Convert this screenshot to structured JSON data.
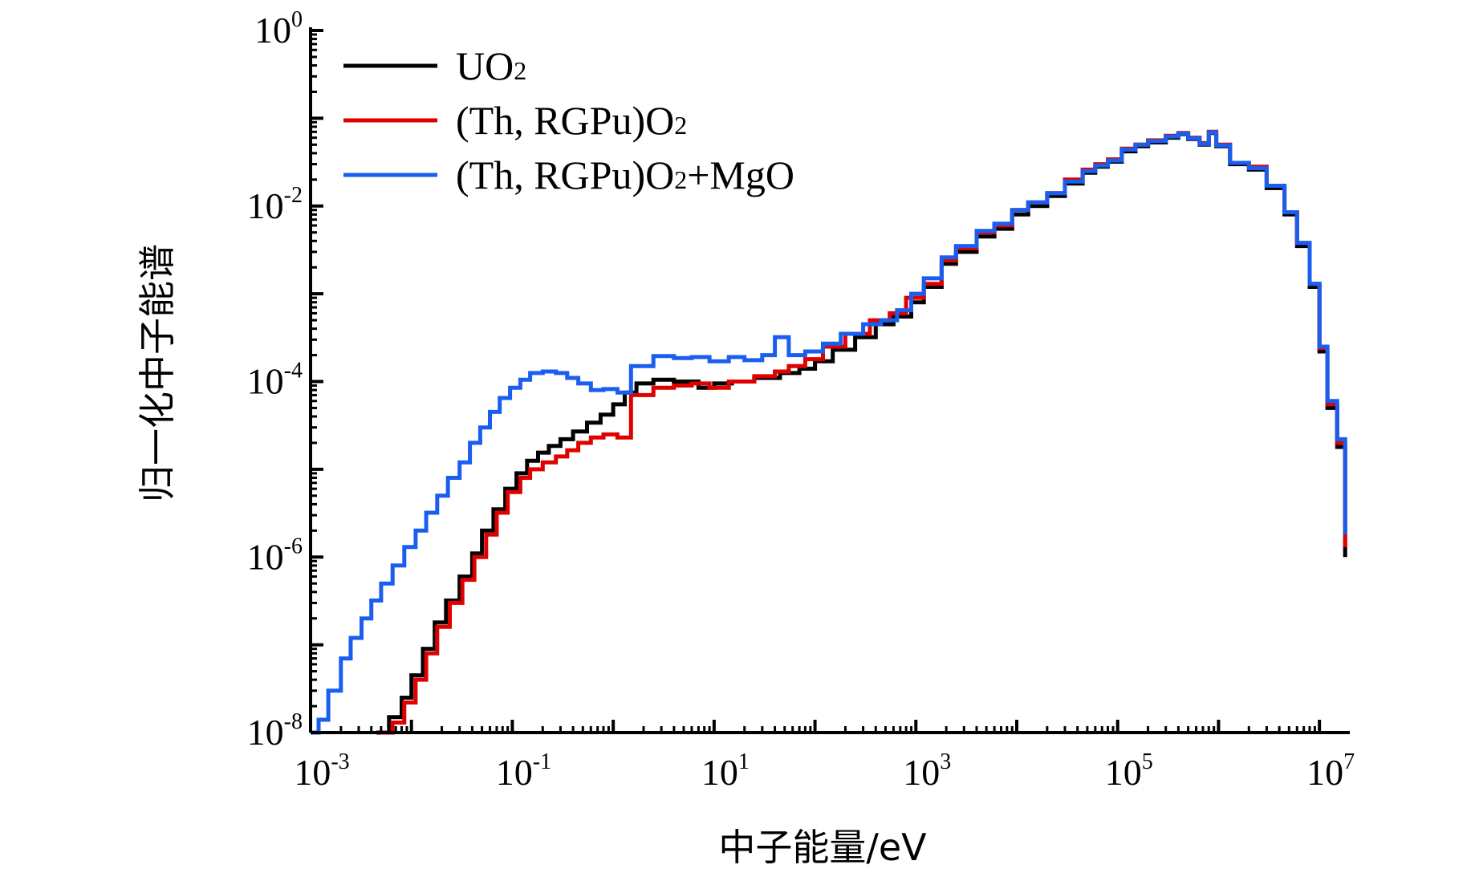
{
  "chart_data": {
    "type": "line",
    "xlabel": "中子能量/eV",
    "ylabel": "归一化中子能谱",
    "x_scale": "log",
    "y_scale": "log",
    "xlim": [
      0.001,
      20000000
    ],
    "ylim": [
      1e-08,
      1
    ],
    "x_ticks": [
      {
        "value": 0.001,
        "base": "10",
        "exp": "-3"
      },
      {
        "value": 0.1,
        "base": "10",
        "exp": "-1"
      },
      {
        "value": 10,
        "base": "10",
        "exp": "1"
      },
      {
        "value": 1000,
        "base": "10",
        "exp": "3"
      },
      {
        "value": 100000,
        "base": "10",
        "exp": "5"
      },
      {
        "value": 10000000,
        "base": "10",
        "exp": "7"
      }
    ],
    "y_ticks": [
      {
        "value": 1e-08,
        "base": "10",
        "exp": "-8"
      },
      {
        "value": 1e-06,
        "base": "10",
        "exp": "-6"
      },
      {
        "value": 0.0001,
        "base": "10",
        "exp": "-4"
      },
      {
        "value": 0.01,
        "base": "10",
        "exp": "-2"
      },
      {
        "value": 1,
        "base": "10",
        "exp": "0"
      }
    ],
    "grid": false,
    "legend_position": "top-left",
    "series": [
      {
        "name": "UO2",
        "legend_main": "UO",
        "legend_sub": "2",
        "legend_tail": "",
        "color": "#000000",
        "points": [
          [
            0.0045,
            1e-08
          ],
          [
            0.006,
            1.5e-08
          ],
          [
            0.008,
            2.5e-08
          ],
          [
            0.01,
            4.5e-08
          ],
          [
            0.013,
            9e-08
          ],
          [
            0.017,
            1.8e-07
          ],
          [
            0.022,
            3.2e-07
          ],
          [
            0.03,
            6e-07
          ],
          [
            0.04,
            1.1e-06
          ],
          [
            0.05,
            2e-06
          ],
          [
            0.065,
            3.5e-06
          ],
          [
            0.085,
            6e-06
          ],
          [
            0.11,
            9e-06
          ],
          [
            0.14,
            1.25e-05
          ],
          [
            0.18,
            1.55e-05
          ],
          [
            0.23,
            1.85e-05
          ],
          [
            0.3,
            2.2e-05
          ],
          [
            0.4,
            2.7e-05
          ],
          [
            0.55,
            3.4e-05
          ],
          [
            0.75,
            4.2e-05
          ],
          [
            1,
            5.5e-05
          ],
          [
            1.3,
            7.5e-05
          ],
          [
            1.7,
            9.5e-05
          ],
          [
            2.5,
            0.000105
          ],
          [
            4,
            0.0001
          ],
          [
            7,
            8.5e-05
          ],
          [
            10,
            9.5e-05
          ],
          [
            15,
            0.0001
          ],
          [
            25,
            0.00011
          ],
          [
            45,
            0.000125
          ],
          [
            70,
            0.00014
          ],
          [
            100,
            0.00017
          ],
          [
            150,
            0.00023
          ],
          [
            250,
            0.00032
          ],
          [
            400,
            0.00045
          ],
          [
            600,
            0.00055
          ],
          [
            900,
            0.0008
          ],
          [
            1200,
            0.0012
          ],
          [
            1800,
            0.0022
          ],
          [
            2500,
            0.003
          ],
          [
            4000,
            0.0045
          ],
          [
            6000,
            0.0055
          ],
          [
            9000,
            0.008
          ],
          [
            13000,
            0.01
          ],
          [
            20000,
            0.013
          ],
          [
            30000,
            0.018
          ],
          [
            45000,
            0.024
          ],
          [
            60000,
            0.028
          ],
          [
            80000,
            0.032
          ],
          [
            110000,
            0.042
          ],
          [
            150000,
            0.048
          ],
          [
            200000,
            0.053
          ],
          [
            300000,
            0.06
          ],
          [
            400000,
            0.066
          ],
          [
            500000,
            0.058
          ],
          [
            650000,
            0.05
          ],
          [
            800000,
            0.068
          ],
          [
            950000,
            0.048
          ],
          [
            1300000,
            0.03
          ],
          [
            2000000,
            0.026
          ],
          [
            3000000,
            0.016
          ],
          [
            4500000,
            0.008
          ],
          [
            6000000,
            0.0035
          ],
          [
            8000000,
            0.0012
          ],
          [
            10000000,
            0.00022
          ],
          [
            12000000,
            5e-05
          ],
          [
            15000000,
            1.8e-05
          ],
          [
            18000000,
            1e-06
          ]
        ]
      },
      {
        "name": "(Th, RGPu)O2",
        "legend_main": "(Th, RGPu)O",
        "legend_sub": "2",
        "legend_tail": "",
        "color": "#e00000",
        "points": [
          [
            0.005,
            1e-08
          ],
          [
            0.0065,
            1.3e-08
          ],
          [
            0.0085,
            2.2e-08
          ],
          [
            0.011,
            4e-08
          ],
          [
            0.014,
            8e-08
          ],
          [
            0.018,
            1.6e-07
          ],
          [
            0.024,
            3e-07
          ],
          [
            0.032,
            5.5e-07
          ],
          [
            0.042,
            1e-06
          ],
          [
            0.055,
            1.8e-06
          ],
          [
            0.07,
            3.2e-06
          ],
          [
            0.09,
            5.5e-06
          ],
          [
            0.12,
            8e-06
          ],
          [
            0.15,
            1e-05
          ],
          [
            0.2,
            1.2e-05
          ],
          [
            0.27,
            1.4e-05
          ],
          [
            0.35,
            1.65e-05
          ],
          [
            0.45,
            2e-05
          ],
          [
            0.6,
            2.3e-05
          ],
          [
            0.8,
            2.5e-05
          ],
          [
            1.1,
            2.3e-05
          ],
          [
            1.5,
            7e-05
          ],
          [
            2.5,
            8.5e-05
          ],
          [
            4,
            9e-05
          ],
          [
            6,
            9.5e-05
          ],
          [
            9,
            8.5e-05
          ],
          [
            14,
            0.0001
          ],
          [
            25,
            0.000115
          ],
          [
            40,
            0.00013
          ],
          [
            55,
            0.00015
          ],
          [
            80,
            0.00018
          ],
          [
            120,
            0.00025
          ],
          [
            200,
            0.00035
          ],
          [
            350,
            0.0005
          ],
          [
            550,
            0.0006
          ],
          [
            800,
            0.0009
          ],
          [
            1200,
            0.0013
          ],
          [
            1800,
            0.0024
          ],
          [
            2500,
            0.0033
          ],
          [
            4000,
            0.005
          ],
          [
            6000,
            0.006
          ],
          [
            9000,
            0.009
          ],
          [
            13000,
            0.011
          ],
          [
            20000,
            0.014
          ],
          [
            30000,
            0.02
          ],
          [
            45000,
            0.026
          ],
          [
            60000,
            0.03
          ],
          [
            80000,
            0.034
          ],
          [
            110000,
            0.045
          ],
          [
            150000,
            0.05
          ],
          [
            200000,
            0.056
          ],
          [
            300000,
            0.063
          ],
          [
            400000,
            0.068
          ],
          [
            500000,
            0.06
          ],
          [
            650000,
            0.052
          ],
          [
            800000,
            0.07
          ],
          [
            950000,
            0.05
          ],
          [
            1300000,
            0.031
          ],
          [
            2000000,
            0.028
          ],
          [
            3000000,
            0.017
          ],
          [
            4500000,
            0.0085
          ],
          [
            6000000,
            0.0038
          ],
          [
            8000000,
            0.0013
          ],
          [
            10000000,
            0.00024
          ],
          [
            12000000,
            5.5e-05
          ],
          [
            15000000,
            2e-05
          ],
          [
            18000000,
            1.3e-06
          ]
        ]
      },
      {
        "name": "(Th, RGPu)O2+MgO",
        "legend_main": "(Th, RGPu)O",
        "legend_sub": "2",
        "legend_tail": "+MgO",
        "color": "#1a5ef0",
        "points": [
          [
            0.001,
            1e-08
          ],
          [
            0.0012,
            1.4e-08
          ],
          [
            0.0015,
            3e-08
          ],
          [
            0.002,
            7e-08
          ],
          [
            0.0025,
            1.2e-07
          ],
          [
            0.0032,
            2e-07
          ],
          [
            0.004,
            3.2e-07
          ],
          [
            0.005,
            5e-07
          ],
          [
            0.0065,
            8e-07
          ],
          [
            0.0085,
            1.3e-06
          ],
          [
            0.011,
            2e-06
          ],
          [
            0.014,
            3.2e-06
          ],
          [
            0.018,
            5e-06
          ],
          [
            0.023,
            8e-06
          ],
          [
            0.03,
            1.2e-05
          ],
          [
            0.038,
            2e-05
          ],
          [
            0.048,
            3e-05
          ],
          [
            0.06,
            4.5e-05
          ],
          [
            0.075,
            6.5e-05
          ],
          [
            0.095,
            8.5e-05
          ],
          [
            0.12,
            0.000105
          ],
          [
            0.15,
            0.000125
          ],
          [
            0.2,
            0.00013
          ],
          [
            0.27,
            0.000125
          ],
          [
            0.35,
            0.00011
          ],
          [
            0.45,
            9.5e-05
          ],
          [
            0.6,
            8e-05
          ],
          [
            0.8,
            8.2e-05
          ],
          [
            1.1,
            7.5e-05
          ],
          [
            1.5,
            0.00015
          ],
          [
            2.5,
            0.000195
          ],
          [
            4,
            0.000185
          ],
          [
            6,
            0.00019
          ],
          [
            9,
            0.00017
          ],
          [
            14,
            0.00019
          ],
          [
            20,
            0.000175
          ],
          [
            30,
            0.0002
          ],
          [
            40,
            0.00032
          ],
          [
            55,
            0.0002
          ],
          [
            80,
            0.00022
          ],
          [
            120,
            0.00027
          ],
          [
            180,
            0.00035
          ],
          [
            300,
            0.00045
          ],
          [
            450,
            0.0005
          ],
          [
            650,
            0.00065
          ],
          [
            900,
            0.001
          ],
          [
            1200,
            0.0015
          ],
          [
            1800,
            0.0026
          ],
          [
            2500,
            0.0035
          ],
          [
            4000,
            0.0052
          ],
          [
            6000,
            0.0063
          ],
          [
            9000,
            0.009
          ],
          [
            13000,
            0.011
          ],
          [
            20000,
            0.014
          ],
          [
            30000,
            0.019
          ],
          [
            45000,
            0.025
          ],
          [
            60000,
            0.029
          ],
          [
            80000,
            0.033
          ],
          [
            110000,
            0.044
          ],
          [
            150000,
            0.05
          ],
          [
            200000,
            0.055
          ],
          [
            300000,
            0.062
          ],
          [
            400000,
            0.067
          ],
          [
            500000,
            0.059
          ],
          [
            650000,
            0.051
          ],
          [
            800000,
            0.069
          ],
          [
            950000,
            0.049
          ],
          [
            1300000,
            0.031
          ],
          [
            2000000,
            0.027
          ],
          [
            3000000,
            0.017
          ],
          [
            4500000,
            0.0085
          ],
          [
            6000000,
            0.0038
          ],
          [
            8000000,
            0.0013
          ],
          [
            10000000,
            0.00025
          ],
          [
            12000000,
            6e-05
          ],
          [
            15000000,
            2.2e-05
          ],
          [
            18000000,
            1.8e-06
          ]
        ]
      }
    ]
  }
}
